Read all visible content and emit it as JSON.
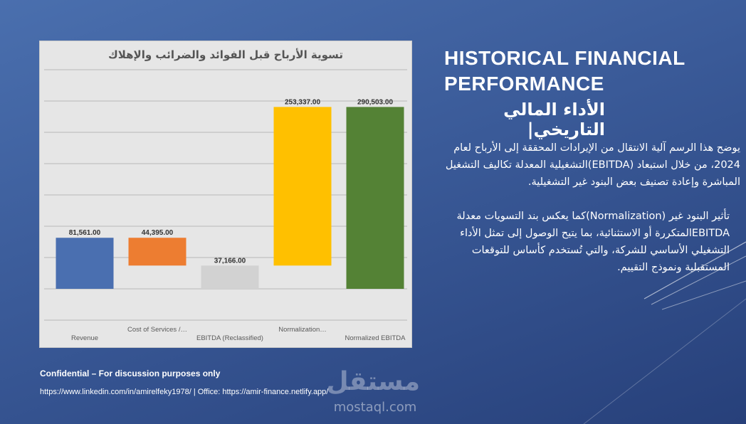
{
  "slide": {
    "heading_en": "HISTORICAL FINANCIAL PERFORMANCE",
    "heading_ar": "الأداء المالي التاريخي|",
    "paragraph1": "يوضح هذا الرسم آلية الانتقال من الإيرادات المحققة إلى الأرباح لعام 2024، من خلال استبعاد (EBITDA)التشغيلية المعدلة تكاليف التشغيل المباشرة وإعادة تصنيف بعض البنود غير التشغيلية.",
    "paragraph2": "تأثير البنود غير (Normalization)كما يعكس بند التسويات معدلة EBITDAالمتكررة أو الاستثنائية، بما يتيح الوصول إلى تمثل الأداء التشغيلي الأساسي للشركة، والتي تُستخدم كأساس للتوقعات المستقبلية ونموذج التقييم.",
    "confidential": "Confidential – For discussion purposes only",
    "footer_links": "https://www.linkedin.com/in/amirelfeky1978/ | Office: https://amir-finance.netlify.app/",
    "watermark_ar": "مستقل",
    "watermark_en": "mostaql.com"
  },
  "chart_data": {
    "type": "bar",
    "subtype": "waterfall",
    "title": "تسوية الأرباح قبل الفوائد والضرائب والإهلاك",
    "categories": [
      "Revenue",
      "Cost of Services /…",
      "EBITDA (Reclassified)",
      "Normalization…",
      "Normalized EBITDA"
    ],
    "values": [
      81561.0,
      44395.0,
      37166.0,
      253337.0,
      290503.0
    ],
    "data_labels": [
      "81,561.00",
      "44,395.00",
      "37,166.00",
      "253,337.00",
      "290,503.00"
    ],
    "bars": [
      {
        "category": "Revenue",
        "start": 0,
        "end": 81561.0,
        "color": "#4a6fb0"
      },
      {
        "category": "Cost of Services /…",
        "start": 81561.0,
        "end": 37166.0,
        "color": "#ed7d31"
      },
      {
        "category": "EBITDA (Reclassified)",
        "start": 37166.0,
        "end": 0,
        "color": "#d2d2d2"
      },
      {
        "category": "Normalization…",
        "start": 37166.0,
        "end": 290503.0,
        "color": "#ffc000"
      },
      {
        "category": "Normalized EBITDA",
        "start": 0,
        "end": 290503.0,
        "color": "#548235"
      }
    ],
    "ylim": [
      -50000,
      350000
    ],
    "grid": true,
    "legend": "none"
  }
}
